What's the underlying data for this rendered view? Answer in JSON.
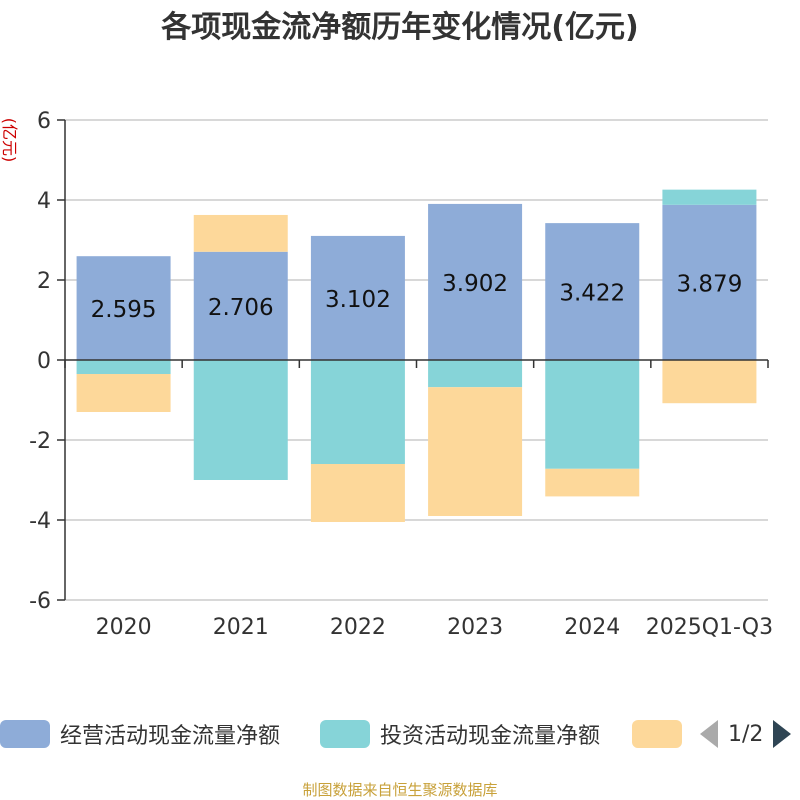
{
  "chart_data": {
    "type": "bar",
    "stacked": true,
    "title": "各项现金流净额历年变化情况(亿元)",
    "ylabel": "(亿元)",
    "xlabel": "",
    "ylim": [
      -6,
      6
    ],
    "yticks": [
      6,
      4,
      2,
      0,
      -2,
      -4,
      -6
    ],
    "categories": [
      "2020",
      "2021",
      "2022",
      "2023",
      "2024",
      "2025Q1-Q3"
    ],
    "series": [
      {
        "name": "经营活动现金流量净额",
        "color": "#8eacd8",
        "values": [
          2.595,
          2.706,
          3.102,
          3.902,
          3.422,
          3.879
        ]
      },
      {
        "name": "投资活动现金流量净额",
        "color": "#86d4d8",
        "values": [
          -0.35,
          -3.0,
          -2.6,
          -0.68,
          -2.72,
          0.38
        ]
      },
      {
        "name": "",
        "color": "#fdd89a",
        "values": [
          -0.95,
          0.92,
          -1.45,
          -3.22,
          -0.69,
          -1.08
        ]
      }
    ],
    "data_labels": [
      "2.595",
      "2.706",
      "3.102",
      "3.902",
      "3.422",
      "3.879"
    ],
    "legend_position": "bottom"
  },
  "legend": {
    "items": [
      {
        "label": "经营活动现金流量净额",
        "color": "#8eacd8"
      },
      {
        "label": "投资活动现金流量净额",
        "color": "#86d4d8"
      },
      {
        "label": "",
        "color": "#fdd89a"
      }
    ],
    "page_text": "1/2"
  },
  "source_note": "制图数据来自恒生聚源数据库"
}
